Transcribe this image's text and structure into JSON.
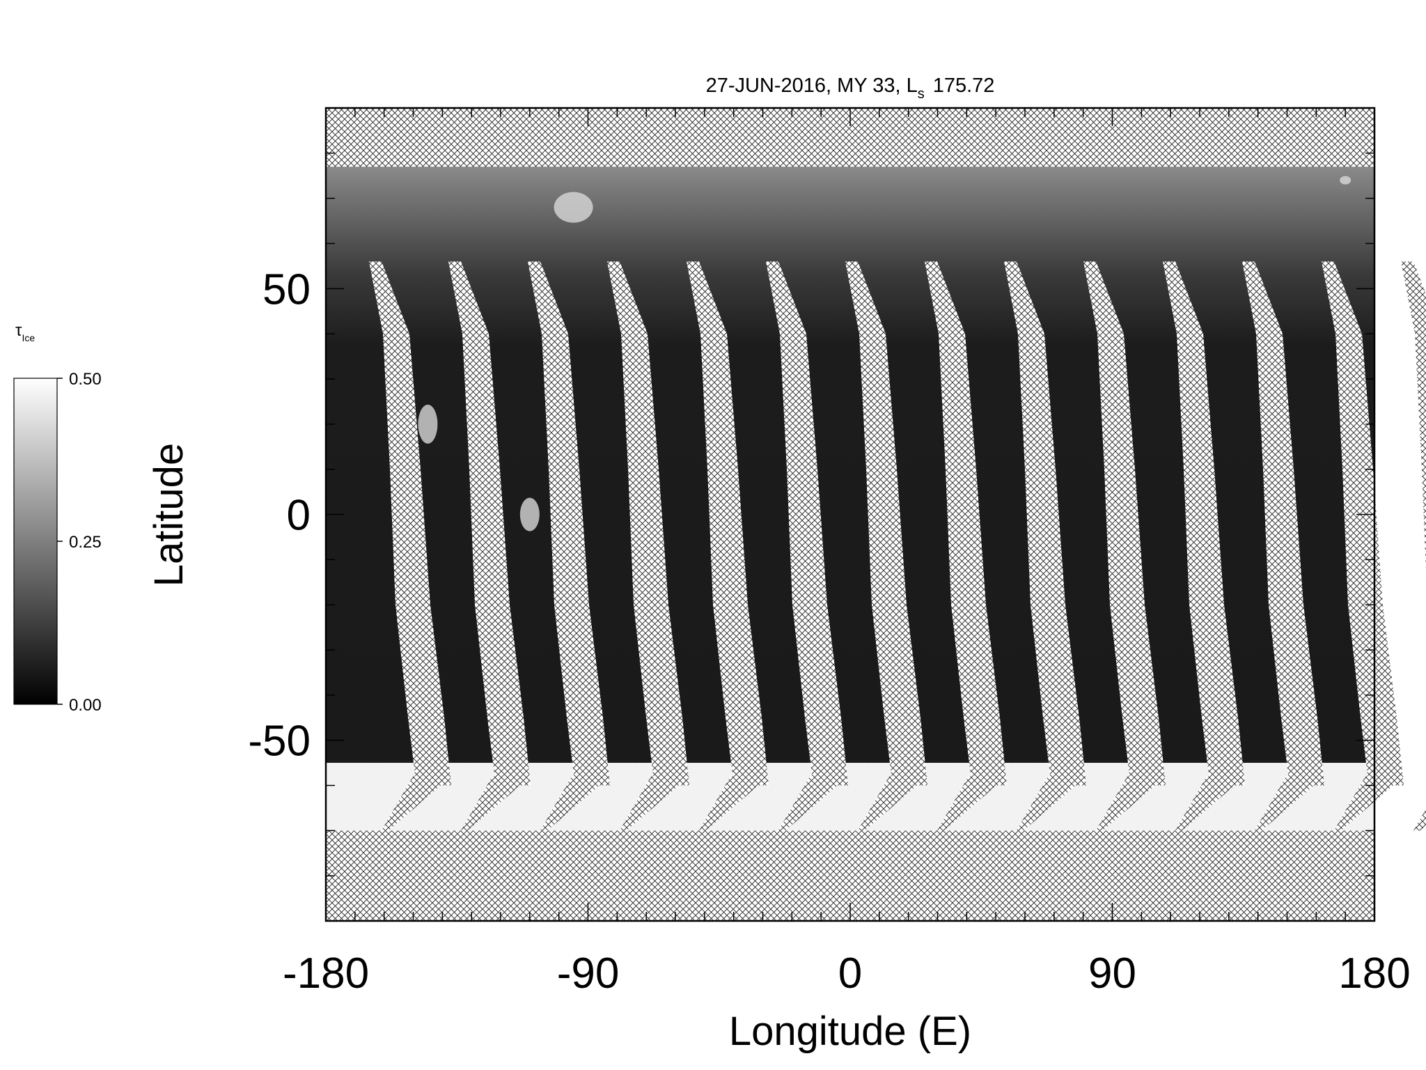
{
  "chart_data": {
    "type": "map",
    "title": "27-JUN-2016, MY 33,  L",
    "title_subscript": "s",
    "title_value": "175.72",
    "xlabel": "Longitude (E)",
    "ylabel": "Latitude",
    "xlim": [
      -180,
      180
    ],
    "ylim": [
      -90,
      90
    ],
    "xticks": [
      -180,
      -90,
      0,
      90,
      180
    ],
    "yticks": [
      -50,
      0,
      50
    ],
    "xminorticks": [
      -170,
      -160,
      -150,
      -140,
      -130,
      -120,
      -110,
      -100,
      -80,
      -70,
      -60,
      -50,
      -40,
      -30,
      -20,
      -10,
      10,
      20,
      30,
      40,
      50,
      60,
      70,
      80,
      100,
      110,
      120,
      130,
      140,
      150,
      160,
      170
    ],
    "yminorticks": [
      -80,
      -70,
      -60,
      -40,
      -30,
      -20,
      -10,
      10,
      20,
      30,
      40,
      60,
      70,
      80
    ],
    "colorbar": {
      "label": "τ",
      "label_subscript": "Ice",
      "lim": [
        0,
        0.5
      ],
      "ticks": [
        {
          "value": 0,
          "label": "0.00"
        },
        {
          "value": 0.25,
          "label": "0.25"
        },
        {
          "value": 0.5,
          "label": "0.50"
        }
      ],
      "colors": [
        "#000000",
        "#ffffff"
      ]
    }
  }
}
